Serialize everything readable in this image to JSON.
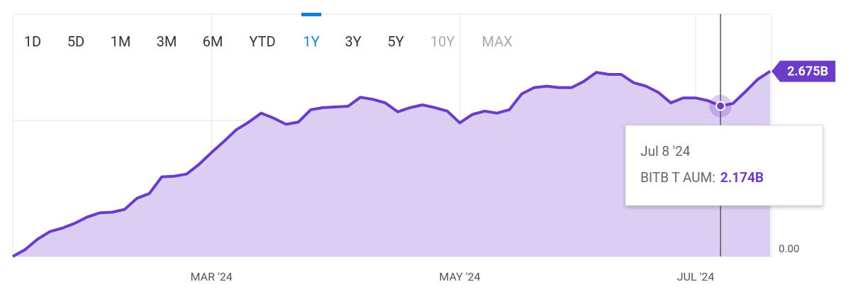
{
  "chart_data": {
    "type": "area",
    "range_buttons": [
      {
        "label": "1D",
        "state": "normal"
      },
      {
        "label": "5D",
        "state": "normal"
      },
      {
        "label": "1M",
        "state": "normal"
      },
      {
        "label": "3M",
        "state": "normal"
      },
      {
        "label": "6M",
        "state": "normal"
      },
      {
        "label": "YTD",
        "state": "normal"
      },
      {
        "label": "1Y",
        "state": "active"
      },
      {
        "label": "3Y",
        "state": "normal"
      },
      {
        "label": "5Y",
        "state": "normal"
      },
      {
        "label": "10Y",
        "state": "disabled"
      },
      {
        "label": "MAX",
        "state": "disabled"
      }
    ],
    "categories": [
      null,
      null,
      null,
      null,
      null,
      null,
      null,
      null,
      null,
      null,
      null,
      null,
      null,
      null,
      null,
      null,
      "MAR '24",
      null,
      null,
      null,
      null,
      null,
      null,
      null,
      null,
      null,
      null,
      null,
      null,
      null,
      null,
      null,
      null,
      null,
      null,
      null,
      "MAY '24",
      null,
      null,
      null,
      null,
      null,
      null,
      null,
      null,
      null,
      null,
      null,
      null,
      null,
      null,
      null,
      null,
      null,
      null,
      "JUL '24",
      null,
      null,
      null,
      null,
      null,
      null
    ],
    "series": [
      {
        "name": "BITB T AUM:",
        "color": "#6a3cc8",
        "fill": "#dccdf3",
        "values": [
          0,
          0.1,
          0.25,
          0.36,
          0.41,
          0.48,
          0.57,
          0.63,
          0.64,
          0.68,
          0.84,
          0.91,
          1.15,
          1.16,
          1.19,
          1.33,
          1.5,
          1.66,
          1.83,
          1.94,
          2.07,
          2.0,
          1.91,
          1.94,
          2.12,
          2.15,
          2.16,
          2.17,
          2.3,
          2.27,
          2.22,
          2.09,
          2.15,
          2.19,
          2.15,
          2.1,
          1.93,
          2.05,
          2.1,
          2.07,
          2.12,
          2.35,
          2.44,
          2.46,
          2.44,
          2.44,
          2.53,
          2.66,
          2.63,
          2.63,
          2.51,
          2.46,
          2.37,
          2.22,
          2.29,
          2.29,
          2.25,
          2.174,
          2.21,
          2.38,
          2.56,
          2.675
        ],
        "value_labels": [
          null,
          null,
          null,
          null,
          null,
          null,
          null,
          null,
          null,
          null,
          null,
          null,
          null,
          null,
          null,
          null,
          null,
          null,
          null,
          null,
          null,
          null,
          null,
          null,
          null,
          null,
          null,
          null,
          null,
          null,
          null,
          null,
          null,
          null,
          null,
          null,
          null,
          null,
          null,
          null,
          null,
          null,
          null,
          null,
          null,
          null,
          null,
          null,
          null,
          null,
          null,
          null,
          null,
          null,
          null,
          null,
          null,
          null,
          null,
          null,
          null,
          "2.675B"
        ]
      }
    ],
    "tooltip": {
      "date": "Jul 8 '24",
      "value": 2.174,
      "value_label": "2.174B"
    },
    "ylim": [
      0,
      3.5
    ],
    "yticks": [
      {
        "value": 0,
        "label": "0.00"
      }
    ],
    "grid": true
  }
}
